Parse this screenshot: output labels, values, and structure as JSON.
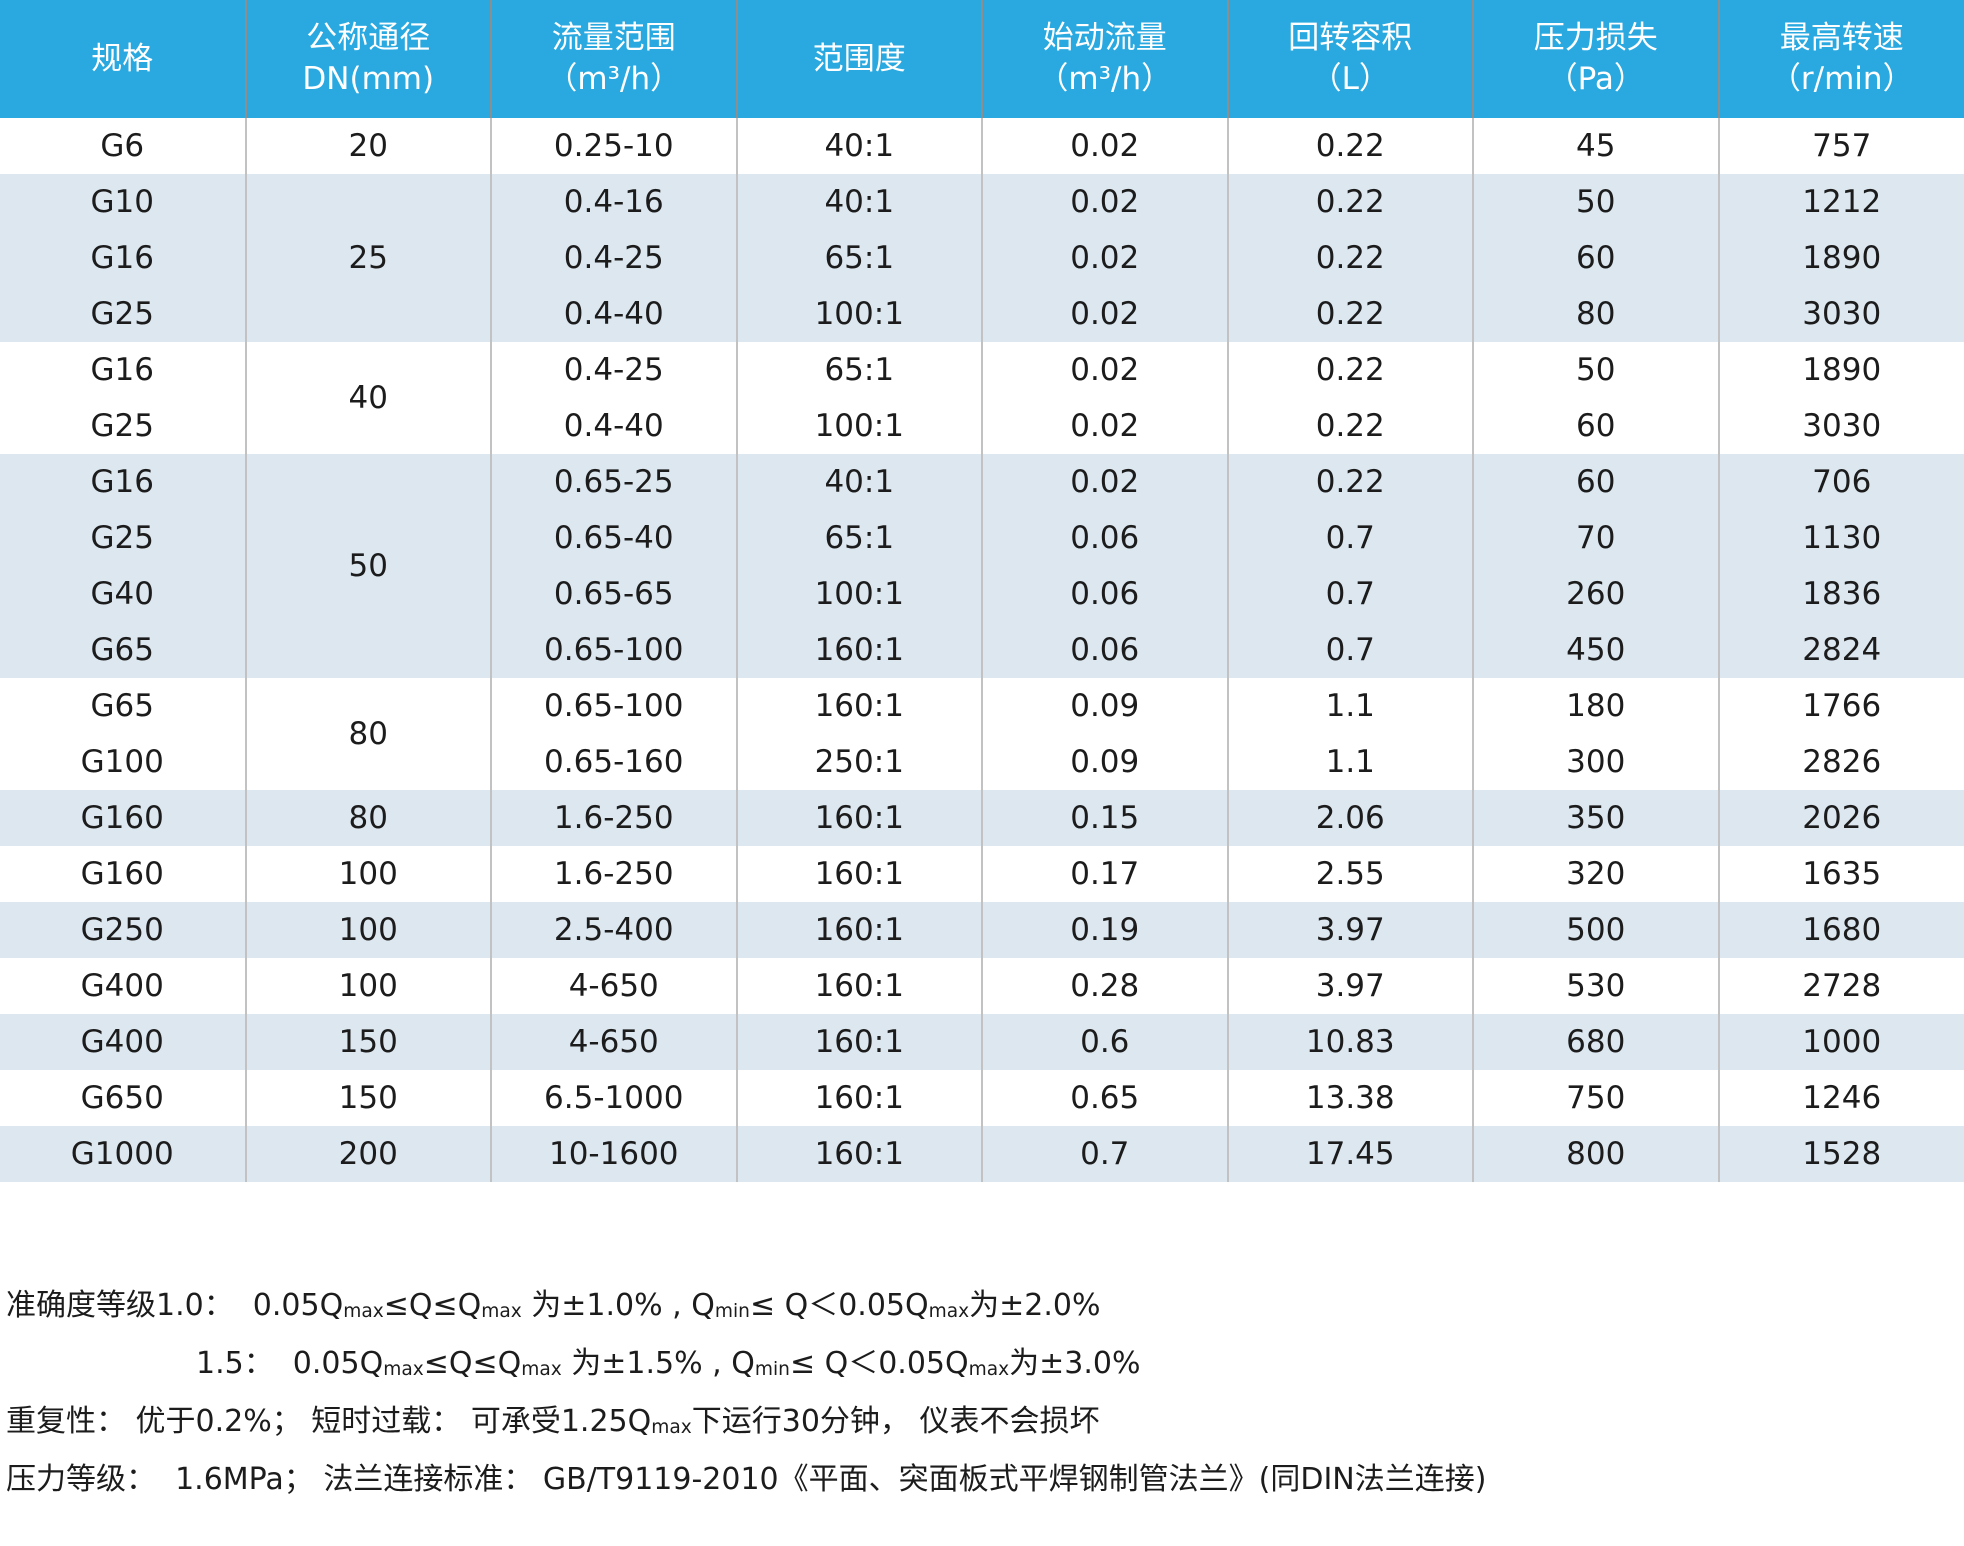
{
  "colors": {
    "header_bg": "#29a9e0",
    "header_text": "#ffffff",
    "band_light": "#dce7f0",
    "band_white": "#ffffff",
    "body_text": "#1c1c1c",
    "grid_line_header": "#8e8e8e",
    "grid_line_body": "#c2c2c2"
  },
  "table": {
    "columns": [
      {
        "id": "spec",
        "lines": [
          "规格"
        ]
      },
      {
        "id": "dn",
        "lines": [
          "公称通径",
          "DN(mm)"
        ]
      },
      {
        "id": "flow",
        "lines": [
          "流量范围",
          "（m³/h）"
        ]
      },
      {
        "id": "range",
        "lines": [
          "范围度"
        ]
      },
      {
        "id": "start",
        "lines": [
          "始动流量",
          "（m³/h）"
        ]
      },
      {
        "id": "volume",
        "lines": [
          "回转容积",
          "（L）"
        ]
      },
      {
        "id": "loss",
        "lines": [
          "压力损失",
          "（Pa）"
        ]
      },
      {
        "id": "speed",
        "lines": [
          "最高转速",
          "（r/min）"
        ]
      }
    ],
    "rows": [
      {
        "group": 0,
        "spec": "G6",
        "dn": "20",
        "dn_span": 1,
        "flow": "0.25-10",
        "range": "40:1",
        "start": "0.02",
        "volume": "0.22",
        "loss": "45",
        "speed": "757"
      },
      {
        "group": 1,
        "spec": "G10",
        "dn": "25",
        "dn_span": 3,
        "flow": "0.4-16",
        "range": "40:1",
        "start": "0.02",
        "volume": "0.22",
        "loss": "50",
        "speed": "1212"
      },
      {
        "group": 1,
        "spec": "G16",
        "flow": "0.4-25",
        "range": "65:1",
        "start": "0.02",
        "volume": "0.22",
        "loss": "60",
        "speed": "1890"
      },
      {
        "group": 1,
        "spec": "G25",
        "flow": "0.4-40",
        "range": "100:1",
        "start": "0.02",
        "volume": "0.22",
        "loss": "80",
        "speed": "3030"
      },
      {
        "group": 2,
        "spec": "G16",
        "dn": "40",
        "dn_span": 2,
        "flow": "0.4-25",
        "range": "65:1",
        "start": "0.02",
        "volume": "0.22",
        "loss": "50",
        "speed": "1890"
      },
      {
        "group": 2,
        "spec": "G25",
        "flow": "0.4-40",
        "range": "100:1",
        "start": "0.02",
        "volume": "0.22",
        "loss": "60",
        "speed": "3030"
      },
      {
        "group": 3,
        "spec": "G16",
        "dn": "50",
        "dn_span": 4,
        "flow": "0.65-25",
        "range": "40:1",
        "start": "0.02",
        "volume": "0.22",
        "loss": "60",
        "speed": "706"
      },
      {
        "group": 3,
        "spec": "G25",
        "flow": "0.65-40",
        "range": "65:1",
        "start": "0.06",
        "volume": "0.7",
        "loss": "70",
        "speed": "1130"
      },
      {
        "group": 3,
        "spec": "G40",
        "flow": "0.65-65",
        "range": "100:1",
        "start": "0.06",
        "volume": "0.7",
        "loss": "260",
        "speed": "1836"
      },
      {
        "group": 3,
        "spec": "G65",
        "flow": "0.65-100",
        "range": "160:1",
        "start": "0.06",
        "volume": "0.7",
        "loss": "450",
        "speed": "2824"
      },
      {
        "group": 4,
        "spec": "G65",
        "dn": "80",
        "dn_span": 2,
        "flow": "0.65-100",
        "range": "160:1",
        "start": "0.09",
        "volume": "1.1",
        "loss": "180",
        "speed": "1766"
      },
      {
        "group": 4,
        "spec": "G100",
        "flow": "0.65-160",
        "range": "250:1",
        "start": "0.09",
        "volume": "1.1",
        "loss": "300",
        "speed": "2826"
      },
      {
        "group": 5,
        "spec": "G160",
        "dn": "80",
        "dn_span": 1,
        "flow": "1.6-250",
        "range": "160:1",
        "start": "0.15",
        "volume": "2.06",
        "loss": "350",
        "speed": "2026"
      },
      {
        "group": 6,
        "spec": "G160",
        "dn": "100",
        "dn_span": 1,
        "flow": "1.6-250",
        "range": "160:1",
        "start": "0.17",
        "volume": "2.55",
        "loss": "320",
        "speed": "1635"
      },
      {
        "group": 7,
        "spec": "G250",
        "dn": "100",
        "dn_span": 1,
        "flow": "2.5-400",
        "range": "160:1",
        "start": "0.19",
        "volume": "3.97",
        "loss": "500",
        "speed": "1680"
      },
      {
        "group": 8,
        "spec": "G400",
        "dn": "100",
        "dn_span": 1,
        "flow": "4-650",
        "range": "160:1",
        "start": "0.28",
        "volume": "3.97",
        "loss": "530",
        "speed": "2728"
      },
      {
        "group": 9,
        "spec": "G400",
        "dn": "150",
        "dn_span": 1,
        "flow": "4-650",
        "range": "160:1",
        "start": "0.6",
        "volume": "10.83",
        "loss": "680",
        "speed": "1000"
      },
      {
        "group": 10,
        "spec": "G650",
        "dn": "150",
        "dn_span": 1,
        "flow": "6.5-1000",
        "range": "160:1",
        "start": "0.65",
        "volume": "13.38",
        "loss": "750",
        "speed": "1246"
      },
      {
        "group": 11,
        "spec": "G1000",
        "dn": "200",
        "dn_span": 1,
        "flow": "10-1600",
        "range": "160:1",
        "start": "0.7",
        "volume": "17.45",
        "loss": "800",
        "speed": "1528"
      }
    ]
  },
  "notes": [
    {
      "indent": false,
      "segments": [
        {
          "text": "准确度等级1.0：  0.05Q"
        },
        {
          "text": "max",
          "sub": true
        },
        {
          "text": "≤Q≤Q"
        },
        {
          "text": "max",
          "sub": true
        },
        {
          "text": " 为±1.0% , Q"
        },
        {
          "text": "min",
          "sub": true
        },
        {
          "text": "≤ Q＜0.05Q"
        },
        {
          "text": "max",
          "sub": true
        },
        {
          "text": "为±2.0%"
        }
      ]
    },
    {
      "indent": true,
      "segments": [
        {
          "text": "1.5：  0.05Q"
        },
        {
          "text": "max",
          "sub": true
        },
        {
          "text": "≤Q≤Q"
        },
        {
          "text": "max",
          "sub": true
        },
        {
          "text": " 为±1.5% , Q"
        },
        {
          "text": "min",
          "sub": true
        },
        {
          "text": "≤ Q＜0.05Q"
        },
        {
          "text": "max",
          "sub": true
        },
        {
          "text": "为±3.0%"
        }
      ]
    },
    {
      "indent": false,
      "segments": [
        {
          "text": "重复性： 优于0.2%； 短时过载： 可承受1.25Q"
        },
        {
          "text": "max",
          "sub": true
        },
        {
          "text": "下运行30分钟， 仪表不会损坏"
        }
      ]
    },
    {
      "indent": false,
      "segments": [
        {
          "text": "压力等级：  1.6MPa； 法兰连接标准： GB/T9119-2010《平面、突面板式平焊钢制管法兰》(同DIN法兰连接)"
        }
      ]
    }
  ]
}
